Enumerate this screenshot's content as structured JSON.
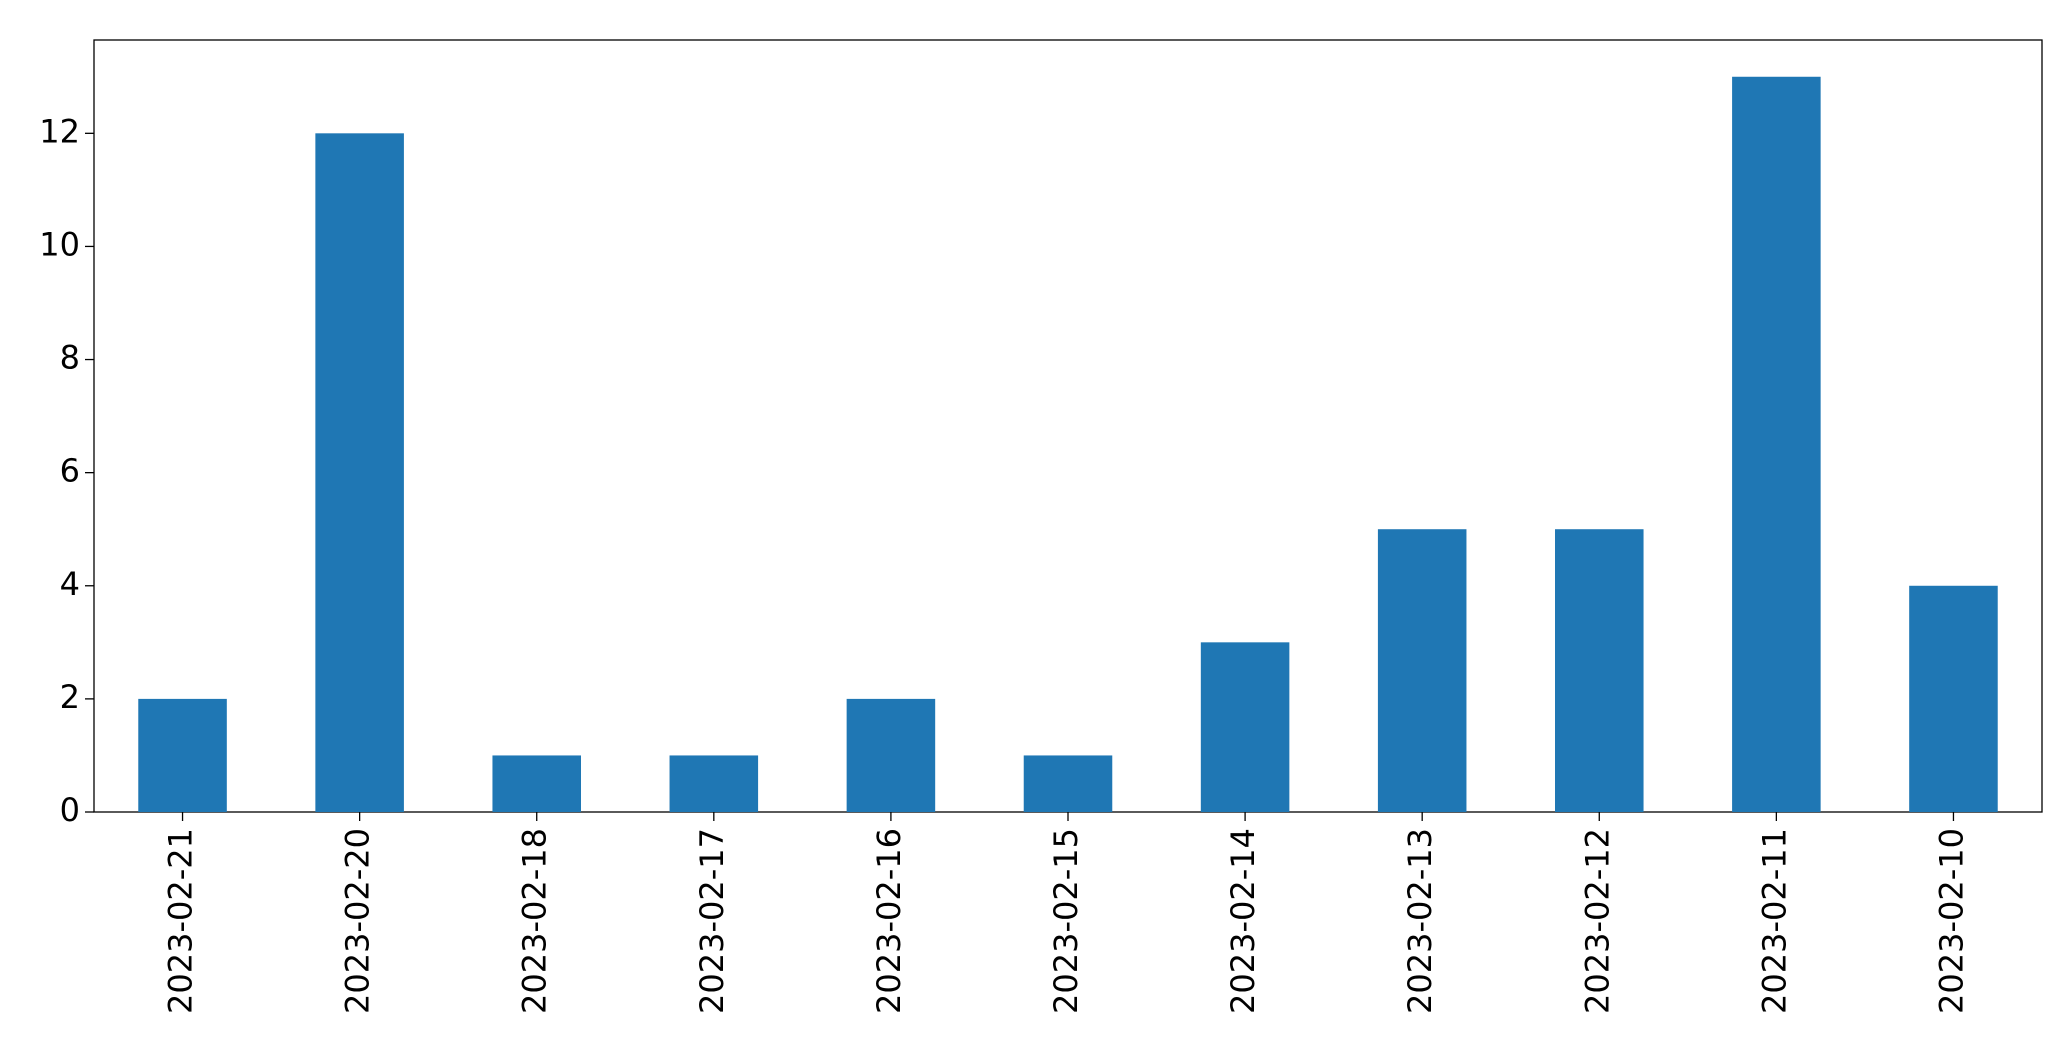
{
  "chart_data": {
    "type": "bar",
    "categories": [
      "2023-02-21",
      "2023-02-20",
      "2023-02-18",
      "2023-02-17",
      "2023-02-16",
      "2023-02-15",
      "2023-02-14",
      "2023-02-13",
      "2023-02-12",
      "2023-02-11",
      "2023-02-10"
    ],
    "values": [
      2,
      12,
      1,
      1,
      2,
      1,
      3,
      5,
      5,
      13,
      4
    ],
    "color": "#1f77b4",
    "ylim": [
      0,
      13.65
    ],
    "yticks": [
      0,
      2,
      4,
      6,
      8,
      10,
      12
    ],
    "grid": false
  }
}
